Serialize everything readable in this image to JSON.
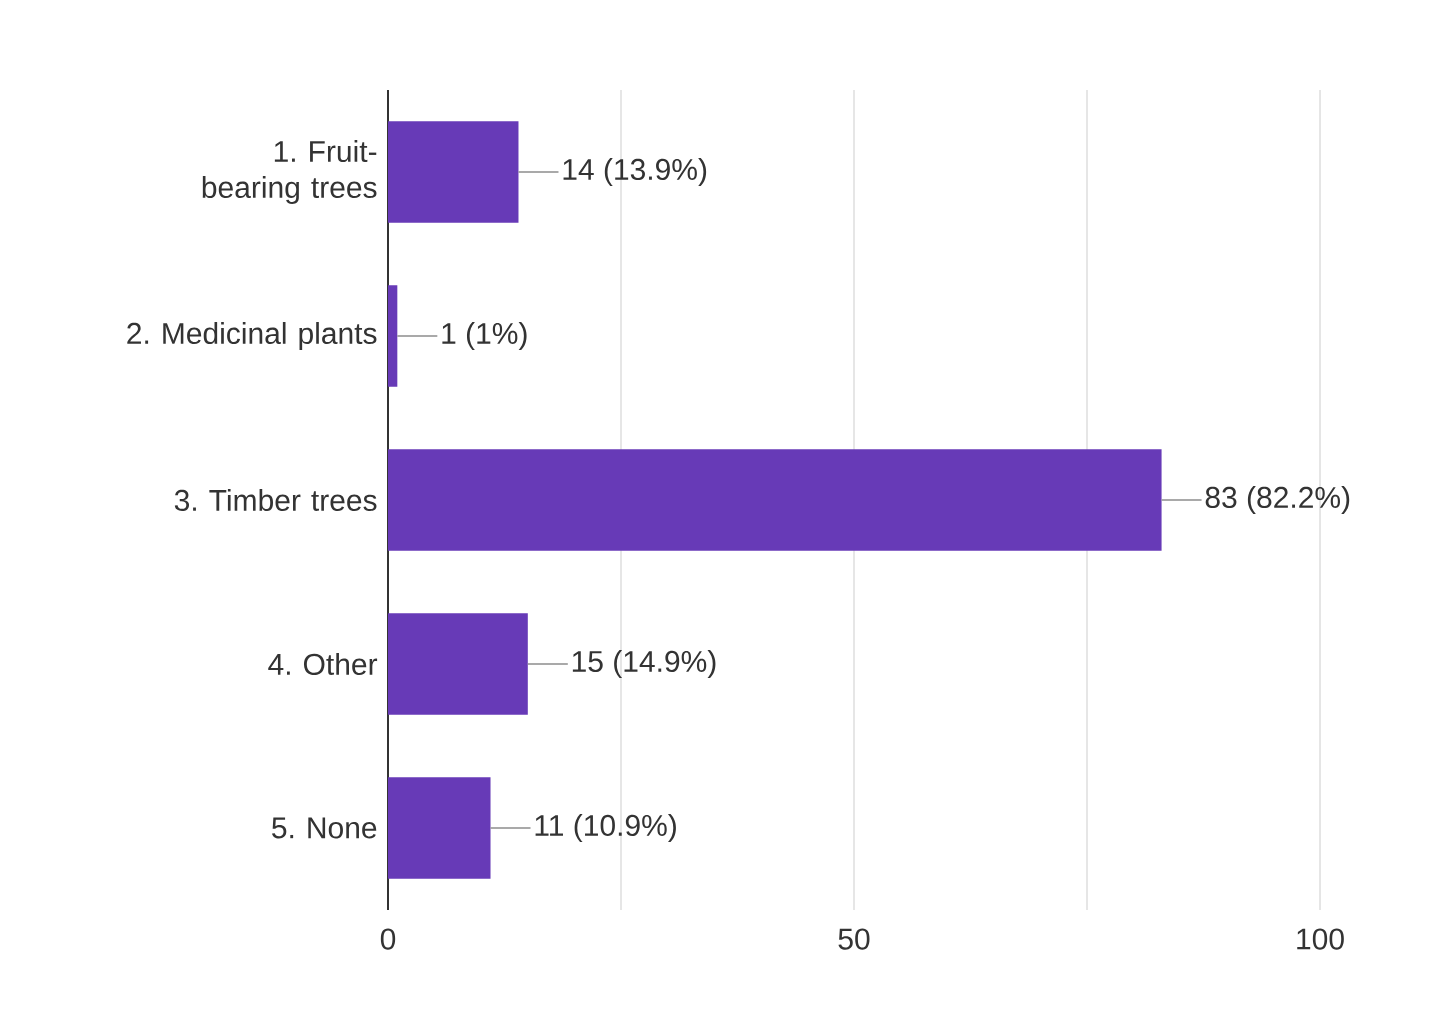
{
  "chart_data": {
    "type": "bar",
    "orientation": "horizontal",
    "categories": [
      "1. Fruit-bearing trees",
      "2. Medicinal plants",
      "3. Timber trees",
      "4. Other",
      "5. None"
    ],
    "values": [
      14,
      1,
      83,
      15,
      11
    ],
    "value_labels": [
      "14 (13.9%)",
      "1 (1%)",
      "83 (82.2%)",
      "15 (14.9%)",
      "11 (10.9%)"
    ],
    "color": "#673ab7",
    "xlim": [
      0,
      100
    ],
    "xticks": [
      0,
      {
        "value": 25,
        "label": null
      },
      50,
      {
        "value": 75,
        "label": null
      },
      100
    ],
    "grid": "x"
  }
}
